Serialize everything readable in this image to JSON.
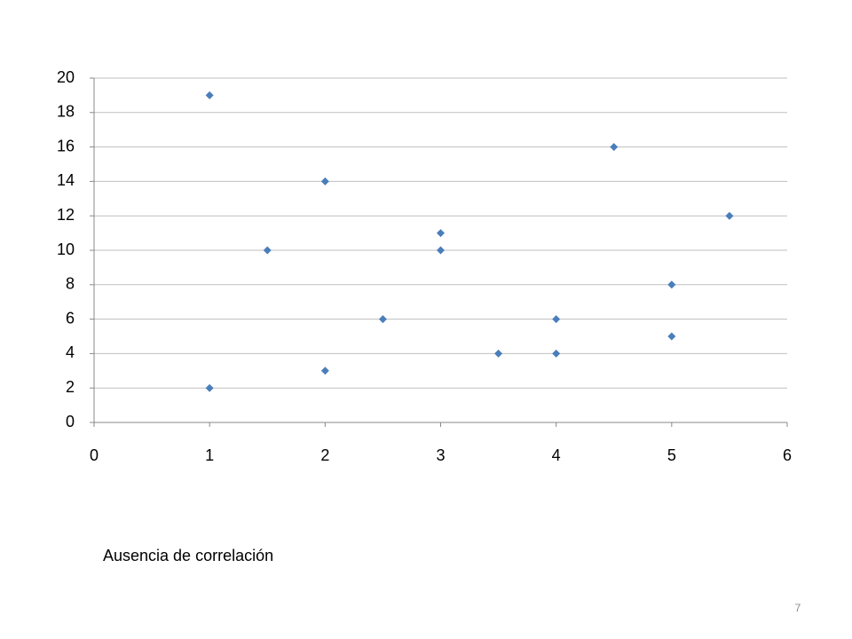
{
  "chart_data": {
    "type": "scatter",
    "x": [
      1,
      1,
      1.5,
      2,
      2,
      2.5,
      3,
      3,
      3.5,
      4,
      4,
      4.5,
      5,
      5,
      5.5
    ],
    "values": [
      19,
      2,
      10,
      14,
      3,
      6,
      11,
      10,
      4,
      6,
      4,
      16,
      8,
      5,
      12
    ],
    "color": "#4a7ebb",
    "xlim": [
      0,
      6
    ],
    "xticks": [
      0,
      1,
      2,
      3,
      4,
      5,
      6
    ],
    "ylim": [
      0,
      20
    ],
    "yticks": [
      0,
      2,
      4,
      6,
      8,
      10,
      12,
      14,
      16,
      18,
      20
    ],
    "grid": true
  },
  "caption": "Ausencia de correlación",
  "page_number": "7"
}
